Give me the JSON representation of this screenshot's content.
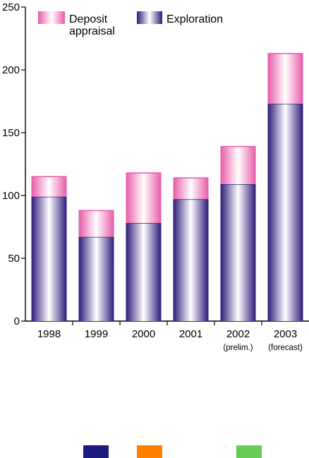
{
  "chart_data": {
    "type": "bar",
    "stacked": true,
    "categories": [
      "1998",
      "1999",
      "2000",
      "2001",
      "2002",
      "2003"
    ],
    "category_sublabels": [
      "",
      "",
      "",
      "",
      "(prelim.)",
      "(forecast)"
    ],
    "series": [
      {
        "name": "Exploration",
        "values": [
          99,
          67,
          78,
          97,
          109,
          173
        ]
      },
      {
        "name": "Deposit appraisal",
        "values": [
          16,
          21,
          40,
          17,
          30,
          40
        ]
      }
    ],
    "title": "",
    "xlabel": "",
    "ylabel": "",
    "ylim": [
      0,
      250
    ],
    "yticks": [
      0,
      50,
      100,
      150,
      200,
      250
    ],
    "grid": false,
    "legend_position": "top",
    "legend_lines": [
      [
        "Deposit",
        "appraisal"
      ],
      [
        "Exploration"
      ]
    ]
  },
  "colors": {
    "exploration_edge": "#2e1a7a",
    "exploration_center": "#ffffff",
    "appraisal_edge": "#e85aa8",
    "appraisal_center": "#ffffff",
    "axis": "#000000"
  },
  "bottom_swatches": [
    {
      "icon": "navy-swatch",
      "color": "#1d1a80"
    },
    {
      "icon": "orange-swatch",
      "color": "#ff8000"
    },
    {
      "icon": "green-swatch",
      "color": "#66cc55"
    }
  ]
}
